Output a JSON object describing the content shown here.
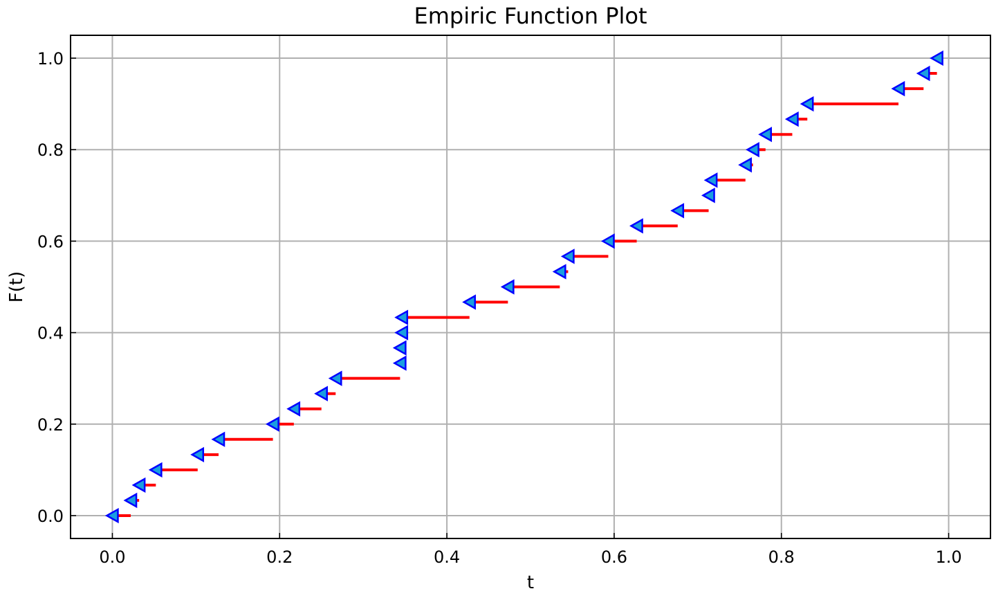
{
  "chart_data": {
    "type": "line",
    "title": "Empiric Function Plot",
    "xlabel": "t",
    "ylabel": "F(t)",
    "xlim": [
      -0.05,
      1.05
    ],
    "ylim": [
      -0.05,
      1.05
    ],
    "grid": true,
    "xticks": [
      "0.0",
      "0.2",
      "0.4",
      "0.6",
      "0.8",
      "1.0"
    ],
    "yticks": [
      "0.0",
      "0.2",
      "0.4",
      "0.6",
      "0.8",
      "1.0"
    ],
    "series": [
      {
        "mark": "step",
        "color": "#ff0000",
        "marker_color": "#1a9ee0",
        "marker_edge_color": "#0000ff",
        "marker": "left-triangle",
        "steps": [
          {
            "x_start": 0.0,
            "x_end": 0.022,
            "y": 0.0
          },
          {
            "x_start": 0.022,
            "x_end": 0.032,
            "y": 0.0333
          },
          {
            "x_start": 0.032,
            "x_end": 0.052,
            "y": 0.0667
          },
          {
            "x_start": 0.052,
            "x_end": 0.102,
            "y": 0.1
          },
          {
            "x_start": 0.102,
            "x_end": 0.127,
            "y": 0.1333
          },
          {
            "x_start": 0.127,
            "x_end": 0.192,
            "y": 0.1667
          },
          {
            "x_start": 0.192,
            "x_end": 0.217,
            "y": 0.2
          },
          {
            "x_start": 0.217,
            "x_end": 0.25,
            "y": 0.2333
          },
          {
            "x_start": 0.25,
            "x_end": 0.267,
            "y": 0.2667
          },
          {
            "x_start": 0.267,
            "x_end": 0.344,
            "y": 0.3
          },
          {
            "x_start": 0.344,
            "x_end": 0.344,
            "y": 0.3333
          },
          {
            "x_start": 0.344,
            "x_end": 0.346,
            "y": 0.3667
          },
          {
            "x_start": 0.346,
            "x_end": 0.346,
            "y": 0.4
          },
          {
            "x_start": 0.346,
            "x_end": 0.427,
            "y": 0.4333
          },
          {
            "x_start": 0.427,
            "x_end": 0.473,
            "y": 0.4667
          },
          {
            "x_start": 0.473,
            "x_end": 0.535,
            "y": 0.5
          },
          {
            "x_start": 0.535,
            "x_end": 0.545,
            "y": 0.5333
          },
          {
            "x_start": 0.545,
            "x_end": 0.593,
            "y": 0.5667
          },
          {
            "x_start": 0.593,
            "x_end": 0.627,
            "y": 0.6
          },
          {
            "x_start": 0.627,
            "x_end": 0.676,
            "y": 0.6333
          },
          {
            "x_start": 0.676,
            "x_end": 0.713,
            "y": 0.6667
          },
          {
            "x_start": 0.713,
            "x_end": 0.716,
            "y": 0.7
          },
          {
            "x_start": 0.716,
            "x_end": 0.757,
            "y": 0.7333
          },
          {
            "x_start": 0.757,
            "x_end": 0.766,
            "y": 0.7667
          },
          {
            "x_start": 0.766,
            "x_end": 0.781,
            "y": 0.8
          },
          {
            "x_start": 0.781,
            "x_end": 0.813,
            "y": 0.8333
          },
          {
            "x_start": 0.813,
            "x_end": 0.831,
            "y": 0.8667
          },
          {
            "x_start": 0.831,
            "x_end": 0.94,
            "y": 0.9
          },
          {
            "x_start": 0.94,
            "x_end": 0.97,
            "y": 0.9333
          },
          {
            "x_start": 0.97,
            "x_end": 0.986,
            "y": 0.9667
          },
          {
            "x_start": 0.986,
            "x_end": 0.986,
            "y": 1.0
          }
        ]
      }
    ]
  }
}
